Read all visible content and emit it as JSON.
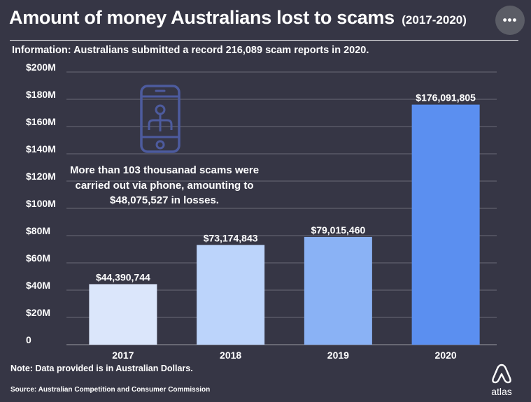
{
  "header": {
    "title": "Amount of money Australians lost to scams",
    "title_years": "(2017-2020)",
    "menu_icon": "more-horizontal-icon",
    "menu_label": "•••"
  },
  "info": {
    "prefix": "Information:",
    "text": "Australians submitted a record 216,089 scam reports in 2020."
  },
  "annotation": {
    "icon": "phone-touch-icon",
    "text": "More than 103 thousanad scams were carried out via phone, amounting to $48,075,527 in losses."
  },
  "chart_data": {
    "type": "bar",
    "categories": [
      "2017",
      "2018",
      "2019",
      "2020"
    ],
    "values": [
      44390744,
      73174843,
      79015460,
      176091805
    ],
    "value_labels": [
      "$44,390,744",
      "$73,174,843",
      "$79,015,460",
      "$176,091,805"
    ],
    "bar_colors": [
      "#dbe6fb",
      "#bcd4fb",
      "#8ab2f5",
      "#5b8ff0"
    ],
    "ylim": [
      0,
      200000000
    ],
    "yticks": [
      0,
      20000000,
      40000000,
      60000000,
      80000000,
      100000000,
      120000000,
      140000000,
      160000000,
      180000000,
      200000000
    ],
    "ytick_labels": [
      "0",
      "$20M",
      "$40M",
      "$60M",
      "$80M",
      "$100M",
      "$120M",
      "$140M",
      "$160M",
      "$180M",
      "$200M"
    ],
    "grid": true,
    "title": "Amount of money Australians lost to scams (2017-2020)",
    "xlabel": "",
    "ylabel": ""
  },
  "footer": {
    "note": "Note: Data provided is in Australian Dollars.",
    "source": "Source: Australian Competition and Consumer Commission",
    "logo_icon": "atlas-logo-icon",
    "logo_text": "atlas"
  },
  "colors": {
    "background": "#363645",
    "grid": "#6a6b78",
    "text": "#ffffff",
    "icon": "#4d5b9e"
  }
}
